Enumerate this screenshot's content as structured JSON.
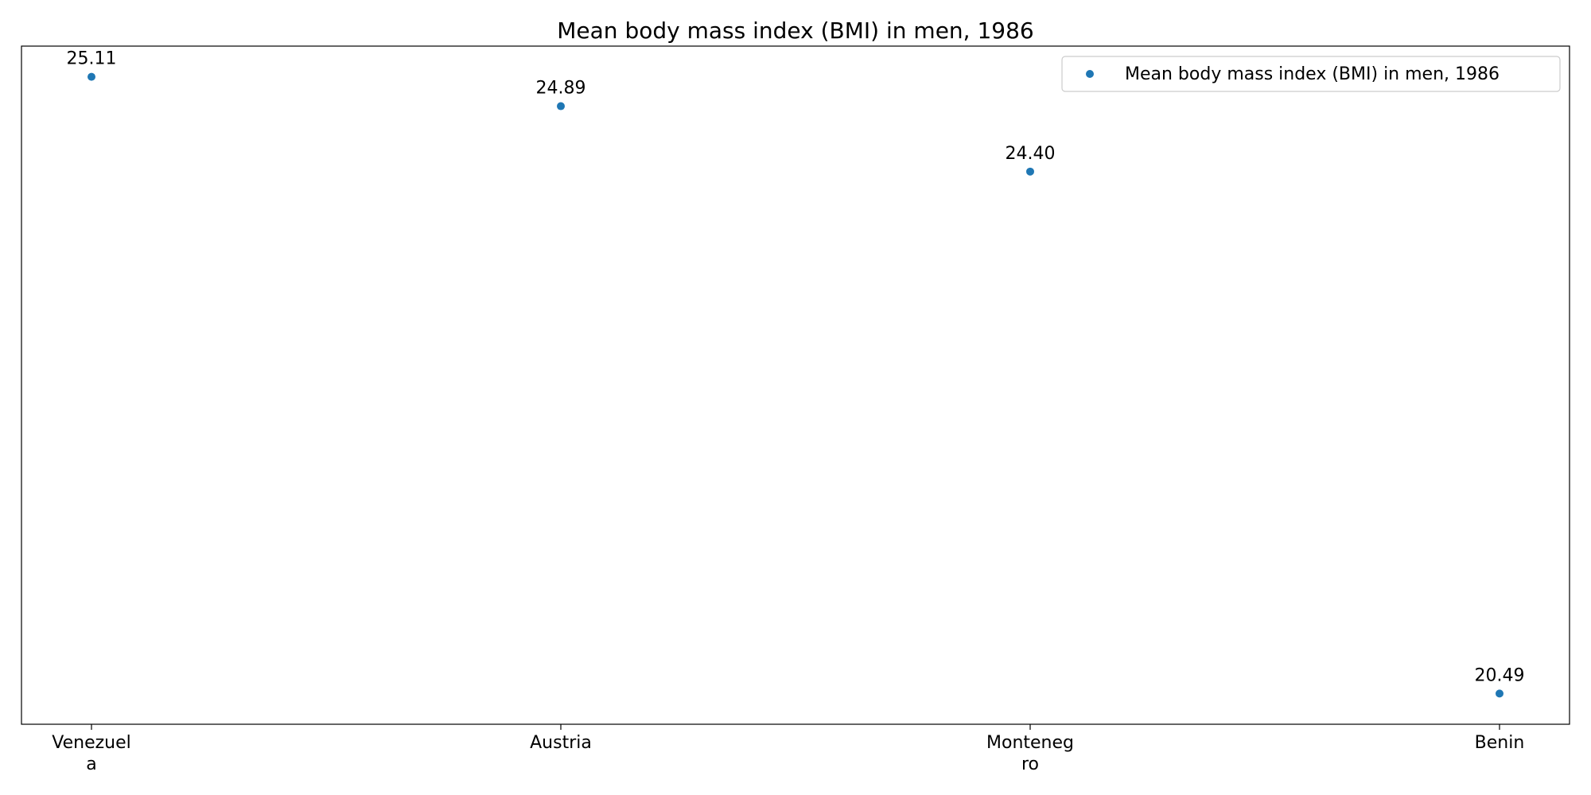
{
  "chart_data": {
    "type": "scatter",
    "title": "Mean body mass index (BMI) in men, 1986",
    "xlabel": "",
    "ylabel": "",
    "categories": [
      [
        "Venezuel",
        "a"
      ],
      [
        "Austria"
      ],
      [
        "Monteneg",
        "ro"
      ],
      [
        "Benin"
      ]
    ],
    "series": [
      {
        "name": "Mean body mass index (BMI) in men, 1986",
        "color": "#1f77b4",
        "values": [
          25.11,
          24.89,
          24.4,
          20.49
        ],
        "labels": [
          "25.11",
          "24.89",
          "24.40",
          "20.49"
        ]
      }
    ],
    "ylim": [
      20.26,
      25.34
    ],
    "grid": false,
    "y_ticks_shown": false,
    "legend": {
      "position": "top-right",
      "entries": [
        "Mean body mass index (BMI) in men, 1986"
      ]
    }
  }
}
